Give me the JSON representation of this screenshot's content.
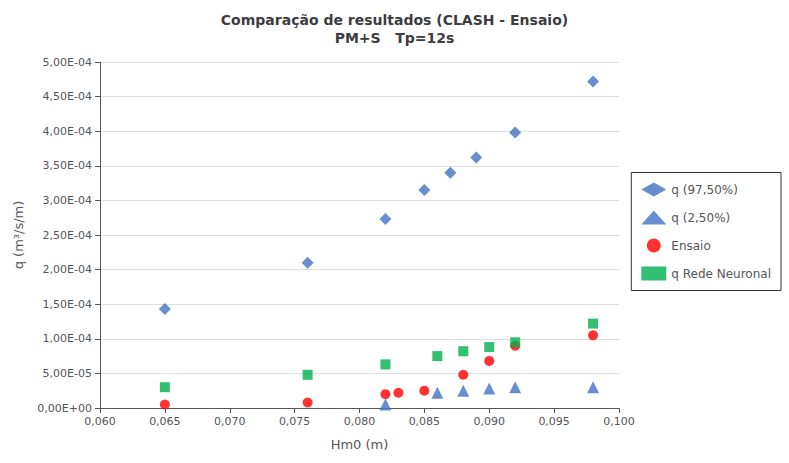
{
  "chart_data": {
    "type": "scatter",
    "title": "Comparação de resultados (CLASH - Ensaio)\nPM+S   Tp=12s",
    "x_label": "Hm0 (m)",
    "y_label": "q (m³/s/m)",
    "xlim": [
      0.06,
      0.1
    ],
    "ylim": [
      0.0,
      0.0005
    ],
    "xticks": [
      {
        "value": 0.06,
        "label": "0,060"
      },
      {
        "value": 0.065,
        "label": "0,065"
      },
      {
        "value": 0.07,
        "label": "0,070"
      },
      {
        "value": 0.075,
        "label": "0,075"
      },
      {
        "value": 0.08,
        "label": "0,080"
      },
      {
        "value": 0.085,
        "label": "0,085"
      },
      {
        "value": 0.09,
        "label": "0,090"
      },
      {
        "value": 0.095,
        "label": "0,095"
      },
      {
        "value": 0.1,
        "label": "0,100"
      }
    ],
    "yticks": [
      {
        "value": 0,
        "label": "0,00E+00"
      },
      {
        "value": 5e-05,
        "label": "5,00E-05"
      },
      {
        "value": 0.0001,
        "label": "1,00E-04"
      },
      {
        "value": 0.00015,
        "label": "1,50E-04"
      },
      {
        "value": 0.0002,
        "label": "2,00E-04"
      },
      {
        "value": 0.00025,
        "label": "2,50E-04"
      },
      {
        "value": 0.0003,
        "label": "3,00E-04"
      },
      {
        "value": 0.00035,
        "label": "3,50E-04"
      },
      {
        "value": 0.0004,
        "label": "4,00E-04"
      },
      {
        "value": 0.00045,
        "label": "4,50E-04"
      },
      {
        "value": 0.0005,
        "label": "5,00E-04"
      }
    ],
    "grid": "y",
    "legend": "right",
    "series": [
      {
        "name": "q (97,50%)",
        "color": "#4472C4",
        "marker": "diamond",
        "x": [
          0.065,
          0.076,
          0.082,
          0.085,
          0.087,
          0.089,
          0.092,
          0.098
        ],
        "values": [
          0.000143,
          0.00021,
          0.000273,
          0.000315,
          0.00034,
          0.000362,
          0.000398,
          0.000472
        ]
      },
      {
        "name": "q (2,50%)",
        "color": "#4472C4",
        "marker": "triangle",
        "x": [
          0.082,
          0.086,
          0.088,
          0.09,
          0.092,
          0.098
        ],
        "values": [
          5e-06,
          2.2e-05,
          2.5e-05,
          2.8e-05,
          3e-05,
          3e-05
        ]
      },
      {
        "name": "Ensaio",
        "color": "#FF0000",
        "marker": "circle",
        "x": [
          0.065,
          0.076,
          0.082,
          0.083,
          0.085,
          0.088,
          0.09,
          0.092,
          0.098
        ],
        "values": [
          5e-06,
          8e-06,
          2e-05,
          2.2e-05,
          2.5e-05,
          4.8e-05,
          6.8e-05,
          9e-05,
          0.000105
        ]
      },
      {
        "name": "q Rede Neuronal",
        "color": "#00B050",
        "marker": "square",
        "x": [
          0.065,
          0.076,
          0.082,
          0.086,
          0.088,
          0.09,
          0.092,
          0.098
        ],
        "values": [
          3e-05,
          4.8e-05,
          6.3e-05,
          7.5e-05,
          8.2e-05,
          8.8e-05,
          9.5e-05,
          0.000122
        ]
      }
    ]
  }
}
